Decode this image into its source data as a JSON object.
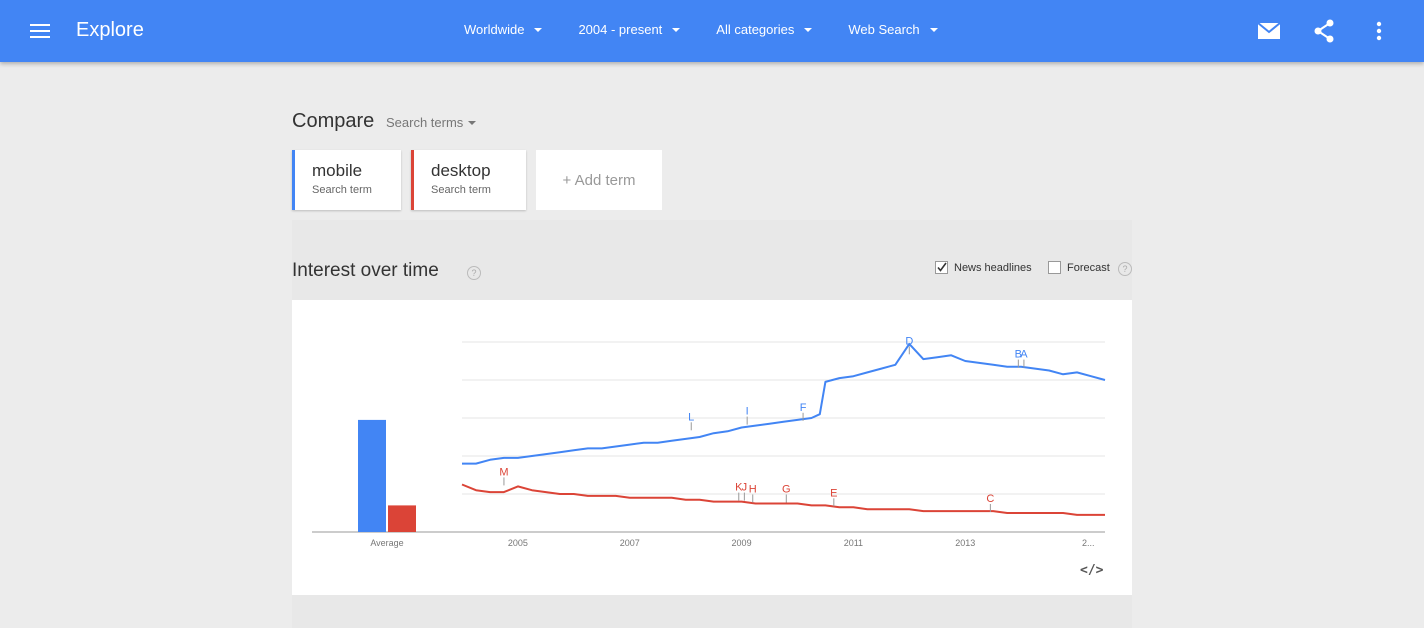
{
  "header": {
    "title": "Explore",
    "filters": [
      {
        "label": "Worldwide"
      },
      {
        "label": "2004 - present"
      },
      {
        "label": "All categories"
      },
      {
        "label": "Web Search"
      }
    ],
    "icons": [
      "menu-icon",
      "mail-icon",
      "share-icon",
      "more-vert-icon"
    ]
  },
  "compare": {
    "title": "Compare",
    "search_terms_label": "Search terms",
    "terms": [
      {
        "name": "mobile",
        "sub": "Search term",
        "color": "#4285f4"
      },
      {
        "name": "desktop",
        "sub": "Search term",
        "color": "#db4437"
      }
    ],
    "add_term_label": "+ Add term"
  },
  "interest": {
    "title": "Interest over time",
    "help": "?",
    "news_headlines_label": "News headlines",
    "forecast_label": "Forecast",
    "news_headlines_checked": true,
    "forecast_checked": false
  },
  "chart_data": {
    "type": "line",
    "x_ticks": [
      "2005",
      "2007",
      "2009",
      "2011",
      "2013",
      "2..."
    ],
    "average_label": "Average",
    "averages": [
      {
        "name": "mobile",
        "value": 59
      },
      {
        "name": "desktop",
        "value": 14
      }
    ],
    "ylim": [
      0,
      100
    ],
    "grid": true,
    "series": [
      {
        "name": "mobile",
        "color": "#4285f4",
        "x": [
          2004.0,
          2004.25,
          2004.5,
          2004.75,
          2005.0,
          2005.25,
          2005.5,
          2005.75,
          2006.0,
          2006.25,
          2006.5,
          2006.75,
          2007.0,
          2007.25,
          2007.5,
          2007.75,
          2008.0,
          2008.25,
          2008.5,
          2008.75,
          2009.0,
          2009.25,
          2009.5,
          2009.75,
          2010.0,
          2010.25,
          2010.4,
          2010.5,
          2010.75,
          2011.0,
          2011.25,
          2011.5,
          2011.75,
          2012.0,
          2012.25,
          2012.5,
          2012.75,
          2013.0,
          2013.25,
          2013.5,
          2013.75,
          2014.0,
          2014.25,
          2014.5,
          2014.75,
          2015.0,
          2015.25,
          2015.5
        ],
        "values": [
          36,
          36,
          38,
          39,
          39,
          40,
          41,
          42,
          43,
          44,
          44,
          45,
          46,
          47,
          47,
          48,
          49,
          50,
          52,
          53,
          55,
          56,
          57,
          58,
          59,
          60,
          62,
          79,
          81,
          82,
          84,
          86,
          88,
          99,
          91,
          92,
          93,
          90,
          89,
          88,
          87,
          87,
          86,
          85,
          83,
          84,
          82,
          80
        ]
      },
      {
        "name": "desktop",
        "color": "#db4437",
        "x": [
          2004.0,
          2004.25,
          2004.5,
          2004.75,
          2005.0,
          2005.25,
          2005.5,
          2005.75,
          2006.0,
          2006.25,
          2006.5,
          2006.75,
          2007.0,
          2007.25,
          2007.5,
          2007.75,
          2008.0,
          2008.25,
          2008.5,
          2008.75,
          2009.0,
          2009.25,
          2009.5,
          2009.75,
          2010.0,
          2010.25,
          2010.5,
          2010.75,
          2011.0,
          2011.25,
          2011.5,
          2011.75,
          2012.0,
          2012.25,
          2012.5,
          2012.75,
          2013.0,
          2013.25,
          2013.5,
          2013.75,
          2014.0,
          2014.25,
          2014.5,
          2014.75,
          2015.0,
          2015.25,
          2015.5
        ],
        "values": [
          25,
          22,
          21,
          21,
          24,
          22,
          21,
          20,
          20,
          19,
          19,
          19,
          18,
          18,
          18,
          18,
          17,
          17,
          16,
          16,
          16,
          15,
          15,
          15,
          15,
          14,
          14,
          13,
          13,
          12,
          12,
          12,
          12,
          11,
          11,
          11,
          11,
          11,
          11,
          10,
          10,
          10,
          10,
          10,
          9,
          9,
          9
        ]
      }
    ],
    "annotations": [
      {
        "letter": "L",
        "series": "mobile",
        "x": 2008.1,
        "value": 53
      },
      {
        "letter": "I",
        "series": "mobile",
        "x": 2009.1,
        "value": 56
      },
      {
        "letter": "F",
        "series": "mobile",
        "x": 2010.1,
        "value": 58
      },
      {
        "letter": "D",
        "series": "mobile",
        "x": 2012.0,
        "value": 93
      },
      {
        "letter": "B",
        "series": "mobile",
        "x": 2013.95,
        "value": 86
      },
      {
        "letter": "A",
        "series": "mobile",
        "x": 2014.05,
        "value": 86
      },
      {
        "letter": "M",
        "series": "desktop",
        "x": 2004.75,
        "value": 24
      },
      {
        "letter": "K",
        "series": "desktop",
        "x": 2008.95,
        "value": 16
      },
      {
        "letter": "J",
        "series": "desktop",
        "x": 2009.05,
        "value": 16
      },
      {
        "letter": "H",
        "series": "desktop",
        "x": 2009.2,
        "value": 15
      },
      {
        "letter": "G",
        "series": "desktop",
        "x": 2009.8,
        "value": 15
      },
      {
        "letter": "E",
        "series": "desktop",
        "x": 2010.65,
        "value": 13
      },
      {
        "letter": "C",
        "series": "desktop",
        "x": 2013.45,
        "value": 10
      }
    ]
  },
  "embed_label": "</>"
}
